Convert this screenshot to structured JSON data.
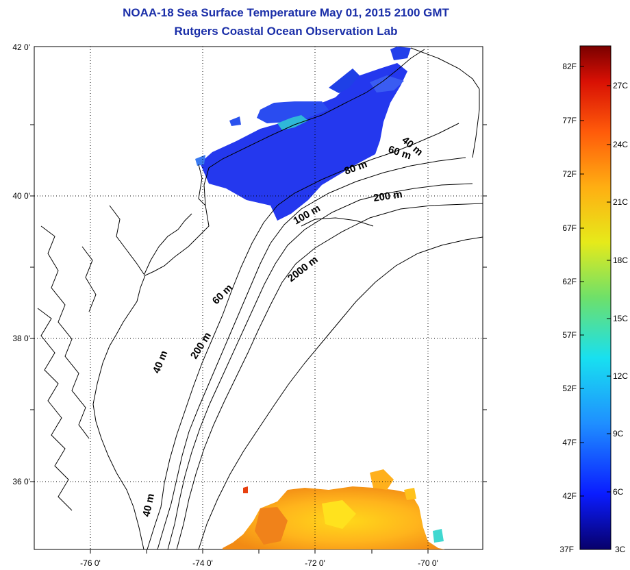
{
  "header": {
    "title": "NOAA-18 Sea Surface Temperature May 01, 2015 2100 GMT",
    "subtitle": "Rutgers Coastal Ocean Observation Lab"
  },
  "map": {
    "lon_range": [
      -77.0,
      -69.0
    ],
    "lat_range": [
      35.0,
      42.0
    ],
    "lat_labels": [
      "42 0'",
      "40 0'",
      "38 0'",
      "36 0'"
    ],
    "lon_labels": [
      "-76 0'",
      "-74 0'",
      "-72 0'",
      "-70 0'"
    ],
    "grid": "dotted",
    "contour_labels": [
      "40 m",
      "60 m",
      "80 m",
      "200 m",
      "100 m",
      "2000 m",
      "60 m",
      "40 m",
      "200 m",
      "40 m"
    ],
    "line_color": "#000000"
  },
  "colorbar": {
    "f_labels": [
      "82F",
      "77F",
      "72F",
      "67F",
      "62F",
      "57F",
      "52F",
      "47F",
      "42F",
      "37F"
    ],
    "c_labels": [
      "27C",
      "24C",
      "21C",
      "18C",
      "15C",
      "12C",
      "9C",
      "6C",
      "3C"
    ],
    "stops": [
      "#08006a",
      "#0a1cff",
      "#1f8fff",
      "#18e0f0",
      "#6ee06a",
      "#e6ea1a",
      "#ffae12",
      "#ff5a0a",
      "#d81004",
      "#7a0000"
    ]
  }
}
